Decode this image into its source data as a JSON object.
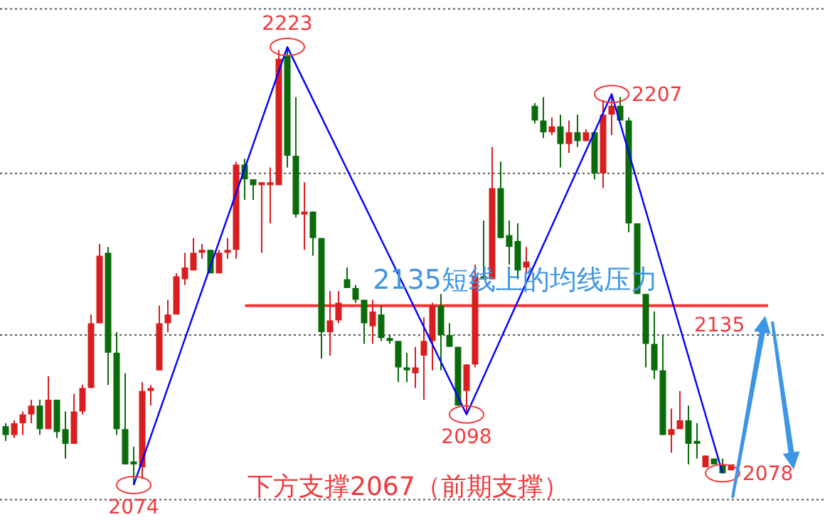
{
  "chart_data": {
    "type": "candlestick",
    "categories": [
      null,
      null,
      null,
      null,
      null,
      null,
      null,
      null,
      null,
      null,
      null,
      null,
      null,
      null,
      null,
      null,
      null,
      null,
      null,
      null,
      null,
      null,
      null,
      null,
      null,
      null,
      null,
      null,
      null,
      null,
      null,
      null,
      null,
      null,
      null,
      null,
      null,
      null,
      null,
      null,
      null,
      null,
      null,
      null,
      null,
      null,
      null,
      null,
      null,
      null,
      null,
      null,
      null,
      null,
      null,
      null,
      null,
      null,
      null,
      null,
      null,
      null,
      null,
      null,
      null,
      null,
      null,
      null,
      null,
      null,
      null,
      null,
      null,
      null,
      null,
      null,
      null,
      null,
      null,
      null,
      null,
      null,
      null,
      null,
      null,
      null
    ],
    "ohlc": [
      [
        2094,
        2095,
        2089,
        2091
      ],
      [
        2091,
        2096,
        2090,
        2095
      ],
      [
        2095,
        2099,
        2091,
        2098
      ],
      [
        2098,
        2103,
        2095,
        2101
      ],
      [
        2101,
        2103,
        2091,
        2093
      ],
      [
        2093,
        2111,
        2093,
        2103
      ],
      [
        2103,
        2103,
        2090,
        2092
      ],
      [
        2093,
        2099,
        2083,
        2088
      ],
      [
        2088,
        2105,
        2088,
        2099
      ],
      [
        2099,
        2108,
        2098,
        2107
      ],
      [
        2107,
        2132,
        2107,
        2129
      ],
      [
        2129,
        2156,
        2129,
        2152
      ],
      [
        2153,
        2155,
        2108,
        2119
      ],
      [
        2119,
        2126,
        2091,
        2093
      ],
      [
        2093,
        2112,
        2081,
        2081
      ],
      [
        2082,
        2087,
        2074,
        2081
      ],
      [
        2080,
        2109,
        2076,
        2106
      ],
      [
        2106,
        2108,
        2101,
        2107
      ],
      [
        2113,
        2135,
        2113,
        2129
      ],
      [
        2129,
        2137,
        2126,
        2132
      ],
      [
        2132,
        2146,
        2132,
        2145
      ],
      [
        2144,
        2153,
        2142,
        2148
      ],
      [
        2147,
        2158,
        2147,
        2153
      ],
      [
        2153,
        2156,
        2151,
        2154
      ],
      [
        2154,
        2154,
        2146,
        2146
      ],
      [
        2146,
        2154,
        2146,
        2153
      ],
      [
        2153,
        2158,
        2151,
        2154
      ],
      [
        2154,
        2184,
        2151,
        2183
      ],
      [
        2183,
        2185,
        2171,
        2178
      ],
      [
        2178,
        2178,
        2171,
        2176
      ],
      [
        2176,
        2177,
        2153,
        2177
      ],
      [
        2176,
        2182,
        2163,
        2177
      ],
      [
        2176,
        2222,
        2176,
        2219
      ],
      [
        2220,
        2223,
        2182,
        2186
      ],
      [
        2186,
        2206,
        2165,
        2166
      ],
      [
        2166,
        2177,
        2154,
        2167
      ],
      [
        2167,
        2167,
        2152,
        2158
      ],
      [
        2158,
        2158,
        2117,
        2126
      ],
      [
        2126,
        2140,
        2118,
        2130
      ],
      [
        2130,
        2140,
        2129,
        2136
      ],
      [
        2144,
        2148,
        2141,
        2141
      ],
      [
        2141,
        2142,
        2136,
        2137
      ],
      [
        2137,
        2137,
        2122,
        2129
      ],
      [
        2128,
        2137,
        2122,
        2133
      ],
      [
        2132,
        2135,
        2123,
        2124
      ],
      [
        2124,
        2125,
        2122,
        2123
      ],
      [
        2123,
        2123,
        2109,
        2114
      ],
      [
        2114,
        2119,
        2109,
        2113
      ],
      [
        2112,
        2121,
        2107,
        2114
      ],
      [
        2118,
        2131,
        2103,
        2123
      ],
      [
        2123,
        2136,
        2113,
        2135
      ],
      [
        2135,
        2139,
        2113,
        2125
      ],
      [
        2125,
        2129,
        2121,
        2121
      ],
      [
        2121,
        2121,
        2101,
        2101
      ],
      [
        2106,
        2115,
        2098,
        2115
      ],
      [
        2115,
        2149,
        2114,
        2145
      ],
      [
        2145,
        2164,
        2144,
        2144
      ],
      [
        2144,
        2189,
        2144,
        2175
      ],
      [
        2175,
        2184,
        2158,
        2158
      ],
      [
        2159,
        2164,
        2149,
        2155
      ],
      [
        2157,
        2163,
        2144,
        2147
      ],
      [
        2148,
        2155,
        2146,
        2150
      ],
      [
        2203,
        2204,
        2197,
        2198
      ],
      [
        2198,
        2206,
        2192,
        2194
      ],
      [
        2194,
        2199,
        2193,
        2196
      ],
      [
        2196,
        2200,
        2182,
        2190
      ],
      [
        2190,
        2198,
        2187,
        2194
      ],
      [
        2194,
        2200,
        2189,
        2191
      ],
      [
        2191,
        2195,
        2191,
        2194
      ],
      [
        2194,
        2194,
        2178,
        2180
      ],
      [
        2180,
        2205,
        2175,
        2200
      ],
      [
        2200,
        2207,
        2193,
        2203
      ],
      [
        2203,
        2206,
        2198,
        2198
      ],
      [
        2198,
        2199,
        2160,
        2163
      ],
      [
        2163,
        2163,
        2139,
        2139
      ],
      [
        2139,
        2139,
        2114,
        2122
      ],
      [
        2122,
        2133,
        2110,
        2113
      ],
      [
        2113,
        2125,
        2091,
        2091
      ],
      [
        2091,
        2100,
        2085,
        2093
      ],
      [
        2093,
        2106,
        2093,
        2096
      ],
      [
        2096,
        2101,
        2081,
        2088
      ],
      [
        2089,
        2095,
        2083,
        2088
      ],
      [
        2080,
        2084,
        2080,
        2084
      ],
      [
        2083,
        2083,
        2081,
        2081
      ],
      [
        2081,
        2083,
        2078,
        2078
      ],
      [
        2079,
        2081,
        2079,
        2081
      ]
    ],
    "series": [
      {
        "type": "line",
        "color": "#0000ff",
        "marker": "circle",
        "values": [
          null,
          null,
          null,
          null,
          null,
          null,
          null,
          null,
          null,
          null,
          null,
          null,
          null,
          null,
          null,
          2074,
          null,
          null,
          null,
          null,
          null,
          null,
          null,
          null,
          null,
          null,
          null,
          null,
          null,
          null,
          null,
          null,
          null,
          2223,
          null,
          null,
          null,
          null,
          null,
          null,
          null,
          null,
          null,
          null,
          null,
          null,
          null,
          null,
          null,
          null,
          null,
          null,
          null,
          null,
          2098,
          null,
          null,
          null,
          null,
          null,
          null,
          null,
          null,
          null,
          null,
          null,
          null,
          null,
          null,
          null,
          null,
          2207,
          null,
          null,
          null,
          null,
          null,
          null,
          null,
          null,
          null,
          null,
          null,
          null,
          2078,
          null
        ]
      }
    ],
    "ylim": [
      2058,
      2239
    ],
    "yticks": [
      {
        "value": 2069,
        "label": null
      },
      {
        "value": 2125,
        "label": null
      },
      {
        "value": 2180,
        "label": null
      },
      {
        "value": 2236,
        "label": null
      }
    ],
    "grid": "y",
    "ref_lines": [
      {
        "axis": "y",
        "value": 2135,
        "label": "2135",
        "color": "#ff3333"
      }
    ],
    "annotations": [
      {
        "text": "2223",
        "y": 2223
      },
      {
        "text": "2074",
        "y": 2074
      },
      {
        "text": "2098",
        "y": 2098
      },
      "2207",
      "2078",
      "2135短线上的均线压力",
      "下方支撑2067（前期支撑）"
    ]
  }
}
